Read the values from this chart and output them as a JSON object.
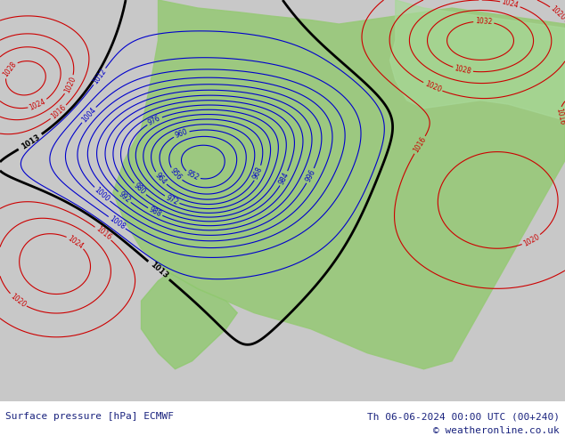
{
  "title_left": "Surface pressure [hPa] ECMWF",
  "title_right": "Th 06-06-2024 00:00 UTC (00+240)",
  "copyright": "© weatheronline.co.uk",
  "title_color": "#1a237e",
  "copyright_color": "#1a237e",
  "fig_width": 6.34,
  "fig_height": 4.9,
  "dpi": 100,
  "ocean_color": "#c8c8c8",
  "land_color": "#98c878",
  "blue_line_color": "#0000cc",
  "red_line_color": "#cc0000",
  "black_line_color": "#000000"
}
